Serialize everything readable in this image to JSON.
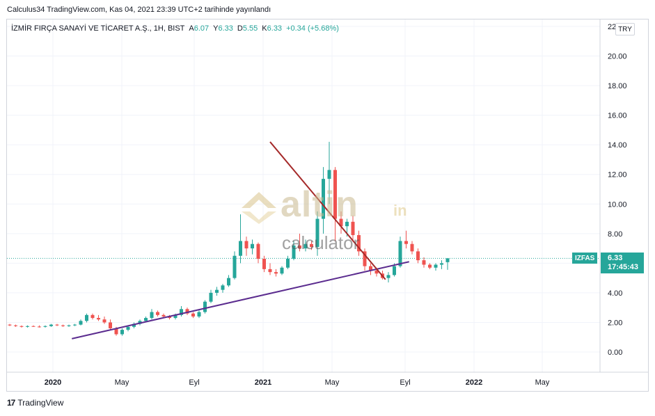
{
  "header": {
    "published": "Calculus34 TradingView.com, Kas 04, 2021 23:39 UTC+2 tarihinde yayınlandı"
  },
  "legend": {
    "symbol": "İZMİR FIRÇA SANAYİ VE TİCARET A.Ş., 1H, BIST",
    "open_label": "A",
    "open_value": "6.07",
    "high_label": "Y",
    "high_value": "6.33",
    "low_label": "D",
    "low_value": "5.55",
    "close_label": "K",
    "close_value": "6.33",
    "change": "+0.34 (+5.68%)"
  },
  "currency": "TRY",
  "price_tag": {
    "symbol": "IZFAS",
    "price": "6.33",
    "countdown": "17:45:43"
  },
  "watermark": {
    "main": "altin",
    "suffix": "in",
    "sub": "calculator"
  },
  "footer": {
    "logo": "17",
    "brand": "TradingView"
  },
  "colors": {
    "up": "#26a69a",
    "down": "#ef5350",
    "support": "#5b2c8f",
    "resistance": "#a52a2a",
    "grid": "#f0f3fa"
  },
  "chart_data": {
    "type": "candlestick",
    "ylim": [
      -1,
      22.5
    ],
    "y_ticks": [
      "0.00",
      "2.00",
      "4.00",
      "6.00",
      "8.00",
      "10.00",
      "12.00",
      "14.00",
      "16.00",
      "18.00",
      "20.00",
      "22.00"
    ],
    "x_ticks": [
      "2020",
      "May",
      "Eyl",
      "2021",
      "May",
      "Eyl",
      "2022",
      "May"
    ],
    "x_tick_index": [
      0,
      4,
      8,
      12,
      16,
      20,
      24,
      28
    ],
    "candles": [
      [
        1.85,
        1.9,
        1.75,
        1.8
      ],
      [
        1.8,
        1.85,
        1.7,
        1.75
      ],
      [
        1.75,
        1.8,
        1.65,
        1.7
      ],
      [
        1.7,
        1.8,
        1.65,
        1.75
      ],
      [
        1.75,
        1.8,
        1.7,
        1.72
      ],
      [
        1.72,
        1.8,
        1.65,
        1.7
      ],
      [
        1.7,
        1.8,
        1.65,
        1.75
      ],
      [
        1.75,
        1.9,
        1.7,
        1.85
      ],
      [
        1.85,
        1.9,
        1.75,
        1.8
      ],
      [
        1.8,
        1.85,
        1.7,
        1.75
      ],
      [
        1.75,
        1.85,
        1.7,
        1.8
      ],
      [
        1.8,
        1.9,
        1.75,
        1.85
      ],
      [
        1.85,
        2.2,
        1.8,
        2.1
      ],
      [
        2.1,
        2.6,
        2.0,
        2.5
      ],
      [
        2.5,
        2.6,
        2.2,
        2.3
      ],
      [
        2.3,
        2.5,
        2.1,
        2.2
      ],
      [
        2.2,
        2.4,
        1.9,
        2.0
      ],
      [
        2.0,
        2.2,
        1.5,
        1.6
      ],
      [
        1.6,
        1.7,
        1.1,
        1.2
      ],
      [
        1.2,
        1.6,
        1.1,
        1.5
      ],
      [
        1.5,
        1.8,
        1.4,
        1.7
      ],
      [
        1.7,
        2.0,
        1.6,
        1.9
      ],
      [
        1.9,
        2.2,
        1.8,
        2.1
      ],
      [
        2.1,
        2.4,
        2.0,
        2.3
      ],
      [
        2.3,
        2.9,
        2.2,
        2.7
      ],
      [
        2.7,
        2.8,
        2.4,
        2.5
      ],
      [
        2.5,
        2.6,
        2.3,
        2.4
      ],
      [
        2.4,
        2.5,
        2.2,
        2.3
      ],
      [
        2.3,
        2.6,
        2.2,
        2.5
      ],
      [
        2.5,
        3.1,
        2.4,
        2.9
      ],
      [
        2.9,
        3.0,
        2.5,
        2.6
      ],
      [
        2.6,
        2.7,
        2.3,
        2.4
      ],
      [
        2.4,
        2.8,
        2.3,
        2.7
      ],
      [
        2.7,
        3.5,
        2.6,
        3.4
      ],
      [
        3.4,
        4.2,
        3.3,
        4.0
      ],
      [
        4.0,
        4.4,
        3.8,
        4.2
      ],
      [
        4.2,
        4.6,
        4.0,
        4.5
      ],
      [
        4.5,
        5.2,
        4.4,
        5.0
      ],
      [
        5.0,
        6.8,
        4.9,
        6.5
      ],
      [
        6.5,
        9.3,
        6.0,
        7.5
      ],
      [
        7.5,
        7.8,
        6.5,
        7.0
      ],
      [
        7.0,
        7.6,
        6.6,
        7.3
      ],
      [
        7.3,
        7.4,
        6.0,
        6.3
      ],
      [
        6.3,
        6.5,
        5.4,
        5.6
      ],
      [
        5.6,
        6.0,
        5.2,
        5.4
      ],
      [
        5.4,
        5.6,
        5.1,
        5.3
      ],
      [
        5.3,
        5.8,
        5.2,
        5.7
      ],
      [
        5.7,
        6.5,
        5.6,
        6.3
      ],
      [
        6.3,
        7.5,
        6.2,
        7.2
      ],
      [
        7.2,
        8.0,
        6.8,
        7.0
      ],
      [
        7.0,
        7.6,
        6.8,
        7.3
      ],
      [
        7.3,
        7.5,
        6.9,
        7.1
      ],
      [
        7.1,
        9.5,
        6.5,
        9.0
      ],
      [
        9.0,
        12.5,
        8.0,
        11.7
      ],
      [
        11.7,
        14.2,
        10.0,
        12.3
      ],
      [
        12.3,
        12.5,
        7.5,
        9.0
      ],
      [
        9.0,
        9.5,
        8.0,
        8.5
      ],
      [
        8.5,
        9.0,
        7.8,
        8.8
      ],
      [
        8.8,
        9.2,
        7.5,
        7.9
      ],
      [
        7.9,
        8.2,
        6.5,
        6.8
      ],
      [
        6.8,
        7.0,
        5.5,
        5.8
      ],
      [
        5.8,
        6.0,
        5.2,
        5.5
      ],
      [
        5.5,
        5.7,
        5.1,
        5.3
      ],
      [
        5.3,
        5.5,
        4.9,
        5.0
      ],
      [
        5.0,
        5.4,
        4.7,
        5.2
      ],
      [
        5.2,
        6.0,
        5.1,
        5.8
      ],
      [
        5.8,
        7.8,
        5.7,
        7.5
      ],
      [
        7.5,
        8.2,
        7.0,
        7.3
      ],
      [
        7.3,
        7.5,
        6.6,
        6.8
      ],
      [
        6.8,
        7.0,
        6.0,
        6.2
      ],
      [
        6.2,
        6.4,
        5.7,
        5.9
      ],
      [
        5.9,
        6.0,
        5.6,
        5.7
      ],
      [
        5.7,
        6.0,
        5.5,
        5.9
      ],
      [
        5.9,
        6.2,
        5.6,
        6.0
      ],
      [
        6.07,
        6.33,
        5.55,
        6.33
      ]
    ],
    "support_line": {
      "from": [
        10.5,
        0.9
      ],
      "to": [
        67.5,
        6.1
      ]
    },
    "resistance_line": {
      "from": [
        44.0,
        14.2
      ],
      "to": [
        63.5,
        4.9
      ]
    },
    "last_price": 6.33
  }
}
